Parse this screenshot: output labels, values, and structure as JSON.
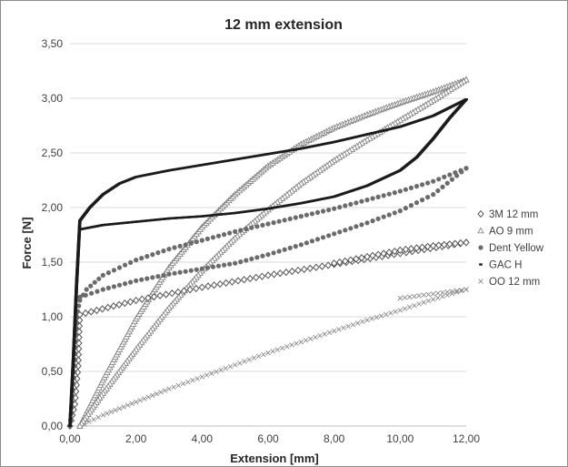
{
  "chart_data": {
    "type": "scatter",
    "title": "12 mm extension",
    "xlabel": "Extension [mm]",
    "ylabel": "Force [N]",
    "xlim": [
      0,
      12
    ],
    "ylim": [
      0,
      3.5
    ],
    "x_ticks": [
      "0,00",
      "2,00",
      "4,00",
      "6,00",
      "8,00",
      "10,00",
      "12,00"
    ],
    "y_ticks": [
      "0,00",
      "0,50",
      "1,00",
      "1,50",
      "2,00",
      "2,50",
      "3,00",
      "3,50"
    ],
    "grid": "horizontal",
    "legend_position": "right",
    "series": [
      {
        "name": "3M 12 mm",
        "marker": "diamond",
        "color": "#555555",
        "loading": {
          "x": [
            0.0,
            0.15,
            0.25,
            0.3,
            2.0,
            4.0,
            6.0,
            8.0,
            10.0,
            12.0
          ],
          "y": [
            0.0,
            0.2,
            0.55,
            1.02,
            1.15,
            1.27,
            1.38,
            1.48,
            1.58,
            1.68
          ]
        },
        "unloading": {
          "x": [
            12.0,
            11.0,
            10.0,
            9.0,
            8.0
          ],
          "y": [
            1.68,
            1.65,
            1.61,
            1.55,
            1.49
          ]
        }
      },
      {
        "name": "AO 9 mm",
        "marker": "triangle",
        "color": "#7a7a7a",
        "loading": {
          "x": [
            0.3,
            1.0,
            2.0,
            3.0,
            4.0,
            5.0,
            6.0,
            7.0,
            8.0,
            9.0,
            10.0,
            11.0,
            12.0
          ],
          "y": [
            0.0,
            0.42,
            0.98,
            1.45,
            1.82,
            2.12,
            2.38,
            2.58,
            2.73,
            2.85,
            2.96,
            3.06,
            3.17
          ]
        },
        "unloading": {
          "x": [
            12.0,
            11.0,
            10.0,
            9.0,
            8.0,
            7.0,
            6.0,
            5.0,
            4.0,
            3.0,
            2.0,
            1.0,
            0.3
          ],
          "y": [
            3.17,
            2.98,
            2.8,
            2.62,
            2.43,
            2.22,
            1.98,
            1.72,
            1.42,
            1.08,
            0.7,
            0.3,
            0.0
          ]
        }
      },
      {
        "name": "Dent Yellow",
        "marker": "circle",
        "color": "#6b6b6b",
        "loading": {
          "x": [
            0.0,
            0.15,
            0.2,
            0.3,
            0.5,
            1.0,
            2.0,
            3.0,
            4.0,
            5.0,
            6.0,
            7.0,
            8.0,
            9.0,
            10.0,
            11.0,
            12.0
          ],
          "y": [
            0.0,
            0.55,
            1.0,
            1.15,
            1.25,
            1.38,
            1.52,
            1.62,
            1.7,
            1.78,
            1.85,
            1.92,
            1.99,
            2.07,
            2.15,
            2.24,
            2.36
          ]
        },
        "unloading": {
          "x": [
            12.0,
            11.0,
            10.0,
            9.0,
            8.0,
            7.0,
            6.0,
            5.0,
            4.0,
            3.0,
            2.0,
            1.0,
            0.3
          ],
          "y": [
            2.36,
            2.12,
            1.97,
            1.86,
            1.76,
            1.66,
            1.57,
            1.49,
            1.44,
            1.39,
            1.33,
            1.25,
            1.18
          ]
        }
      },
      {
        "name": "GAC H",
        "marker": "dash",
        "color": "#1a1a1a",
        "loading": {
          "x": [
            0.0,
            0.1,
            0.2,
            0.3,
            0.6,
            1.0,
            1.5,
            2.0,
            3.0,
            4.0,
            5.0,
            6.0,
            7.0,
            8.0,
            9.0,
            10.0,
            11.0,
            12.0
          ],
          "y": [
            0.0,
            0.6,
            1.3,
            1.88,
            2.0,
            2.12,
            2.22,
            2.28,
            2.34,
            2.39,
            2.44,
            2.49,
            2.54,
            2.6,
            2.67,
            2.74,
            2.84,
            2.99
          ]
        },
        "unloading": {
          "x": [
            12.0,
            11.5,
            11.0,
            10.5,
            10.0,
            9.0,
            8.0,
            7.0,
            6.0,
            5.0,
            4.0,
            3.0,
            2.0,
            1.0,
            0.3
          ],
          "y": [
            2.99,
            2.82,
            2.63,
            2.46,
            2.34,
            2.2,
            2.1,
            2.04,
            1.99,
            1.95,
            1.92,
            1.9,
            1.87,
            1.84,
            1.8
          ]
        }
      },
      {
        "name": "OO 12 mm",
        "marker": "cross",
        "color": "#8a8a8a",
        "loading": {
          "x": [
            0.3,
            1.0,
            2.0,
            3.0,
            4.0,
            5.0,
            6.0,
            7.0,
            8.0,
            9.0,
            10.0,
            11.0,
            12.0
          ],
          "y": [
            0.0,
            0.1,
            0.22,
            0.34,
            0.45,
            0.56,
            0.67,
            0.77,
            0.87,
            0.97,
            1.06,
            1.16,
            1.25
          ]
        },
        "unloading": {
          "x": [
            12.0,
            11.0,
            10.0
          ],
          "y": [
            1.25,
            1.21,
            1.17
          ]
        }
      }
    ]
  }
}
